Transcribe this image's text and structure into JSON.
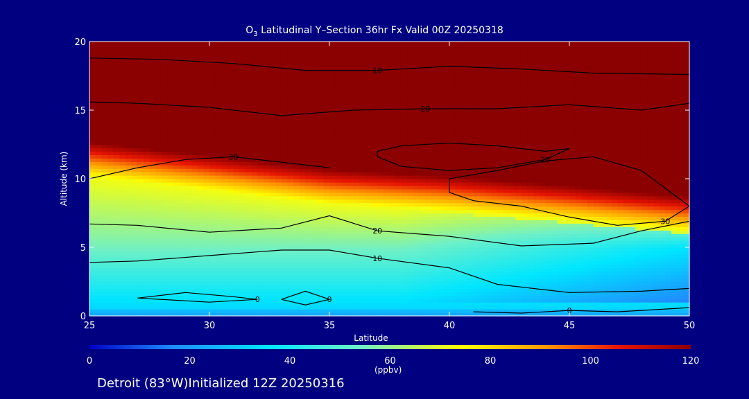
{
  "title_prefix": "O",
  "title_sub": "3",
  "title_rest": " Latitudinal Y–Section 36hr  Fx Valid 00Z 20250318",
  "footer": "Detroit (83°W)Initialized 12Z 20250316",
  "colors": {
    "background": "#000080",
    "contour": "#000000",
    "text": "#ffffff"
  },
  "chart_data": {
    "type": "heatmap",
    "xlabel": "Latitude",
    "ylabel": "Altitude (km)",
    "xlim": [
      25,
      50
    ],
    "ylim": [
      0,
      20
    ],
    "x_ticks": [
      25,
      30,
      35,
      40,
      45,
      50
    ],
    "y_ticks": [
      0,
      5,
      10,
      15,
      20
    ],
    "colorbar": {
      "min": 0,
      "max": 120,
      "ticks": [
        0,
        20,
        40,
        60,
        80,
        100,
        120
      ],
      "unit": "(ppbv)",
      "colors": [
        "#0000c8",
        "#1e8cff",
        "#00e6ff",
        "#6ef0c8",
        "#ffff00",
        "#ff9600",
        "#e61400",
        "#8b0000"
      ]
    },
    "ozone_field": {
      "note_latitudes": [
        25,
        30,
        35,
        40,
        45,
        50
      ],
      "transition_altitude_km": [
        11.5,
        10.5,
        9.5,
        9.0,
        8.3,
        7.5
      ],
      "surface_ppbv": 30,
      "midlevel_ppbv": 55,
      "upper_ppbv": 120
    },
    "contours": [
      {
        "label": "10",
        "points": [
          [
            25,
            18.8
          ],
          [
            28,
            18.7
          ],
          [
            31,
            18.4
          ],
          [
            34,
            17.9
          ],
          [
            37,
            17.9
          ],
          [
            40,
            18.2
          ],
          [
            43,
            18.0
          ],
          [
            46,
            17.7
          ],
          [
            50,
            17.6
          ]
        ]
      },
      {
        "label": "20",
        "points": [
          [
            25,
            15.6
          ],
          [
            27,
            15.5
          ],
          [
            30,
            15.2
          ],
          [
            33,
            14.6
          ],
          [
            36,
            15.0
          ],
          [
            39,
            15.1
          ],
          [
            42,
            15.1
          ],
          [
            45,
            15.4
          ],
          [
            48,
            15.0
          ],
          [
            50,
            15.5
          ]
        ]
      },
      {
        "label": "20",
        "points": [
          [
            37,
            12.0
          ],
          [
            38,
            12.4
          ],
          [
            40,
            12.6
          ],
          [
            42,
            12.4
          ],
          [
            44,
            12.0
          ],
          [
            45,
            12.2
          ],
          [
            44,
            11.4
          ],
          [
            42,
            10.8
          ],
          [
            40,
            10.6
          ],
          [
            38,
            10.9
          ],
          [
            37,
            11.6
          ],
          [
            37,
            12.0
          ]
        ]
      },
      {
        "label": "30",
        "points": [
          [
            25,
            10.0
          ],
          [
            27,
            10.8
          ],
          [
            29,
            11.4
          ],
          [
            31,
            11.6
          ],
          [
            33,
            11.2
          ],
          [
            35,
            10.8
          ]
        ]
      },
      {
        "label": "30",
        "points": [
          [
            40,
            10.0
          ],
          [
            42,
            10.6
          ],
          [
            44,
            11.3
          ],
          [
            46,
            11.6
          ],
          [
            48,
            10.6
          ],
          [
            50,
            8.0
          ],
          [
            49,
            6.9
          ],
          [
            47,
            6.6
          ],
          [
            45,
            7.2
          ],
          [
            43,
            8.0
          ],
          [
            41,
            8.4
          ],
          [
            40,
            9.0
          ],
          [
            40,
            10.0
          ]
        ]
      },
      {
        "label": "20",
        "points": [
          [
            25,
            6.7
          ],
          [
            27,
            6.6
          ],
          [
            30,
            6.1
          ],
          [
            33,
            6.4
          ],
          [
            35,
            7.3
          ],
          [
            37,
            6.2
          ],
          [
            40,
            5.8
          ],
          [
            43,
            5.1
          ],
          [
            46,
            5.3
          ],
          [
            48,
            6.2
          ],
          [
            50,
            6.9
          ]
        ]
      },
      {
        "label": "10",
        "points": [
          [
            25,
            3.9
          ],
          [
            27,
            4.0
          ],
          [
            30,
            4.4
          ],
          [
            33,
            4.8
          ],
          [
            35,
            4.8
          ],
          [
            37,
            4.2
          ],
          [
            40,
            3.5
          ],
          [
            42,
            2.3
          ],
          [
            45,
            1.7
          ],
          [
            48,
            1.8
          ],
          [
            50,
            2.0
          ]
        ]
      },
      {
        "label": "0",
        "points": [
          [
            27,
            1.3
          ],
          [
            29,
            1.7
          ],
          [
            31,
            1.4
          ],
          [
            32,
            1.2
          ],
          [
            30,
            1.0
          ],
          [
            27,
            1.3
          ]
        ]
      },
      {
        "label": "0",
        "points": [
          [
            33,
            1.2
          ],
          [
            34,
            1.8
          ],
          [
            35,
            1.2
          ],
          [
            34,
            0.8
          ],
          [
            33,
            1.2
          ]
        ]
      },
      {
        "label": "0",
        "points": [
          [
            41,
            0.3
          ],
          [
            43,
            0.2
          ],
          [
            45,
            0.4
          ],
          [
            47,
            0.3
          ],
          [
            50,
            0.6
          ]
        ]
      }
    ]
  }
}
